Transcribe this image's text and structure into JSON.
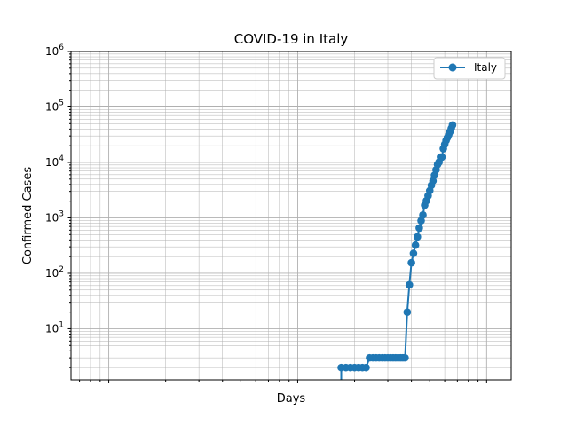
{
  "chart_data": {
    "type": "line",
    "title": "COVID-19 in Italy",
    "xlabel": "Days",
    "ylabel": "Confirmed Cases",
    "yscale": "log",
    "xscale": "log",
    "ylim": [
      1.2,
      1000000
    ],
    "grid": "both (major and minor)",
    "legend_placement": "top-right",
    "series": [
      {
        "name": "Italy",
        "color": "#1f77b4",
        "marker": "circle",
        "points": [
          [
            17,
            1.2
          ],
          [
            17,
            2
          ],
          [
            18,
            2
          ],
          [
            19,
            2
          ],
          [
            20,
            2
          ],
          [
            21,
            2
          ],
          [
            22,
            2
          ],
          [
            23,
            2
          ],
          [
            24,
            3
          ],
          [
            25,
            3
          ],
          [
            26,
            3
          ],
          [
            27,
            3
          ],
          [
            28,
            3
          ],
          [
            29,
            3
          ],
          [
            30,
            3
          ],
          [
            31,
            3
          ],
          [
            32,
            3
          ],
          [
            33,
            3
          ],
          [
            34,
            3
          ],
          [
            35,
            3
          ],
          [
            36,
            3
          ],
          [
            37,
            3
          ],
          [
            38,
            20
          ],
          [
            39,
            62
          ],
          [
            40,
            155
          ],
          [
            41,
            229
          ],
          [
            42,
            322
          ],
          [
            43,
            453
          ],
          [
            44,
            655
          ],
          [
            45,
            888
          ],
          [
            46,
            1128
          ],
          [
            47,
            1694
          ],
          [
            48,
            2036
          ],
          [
            49,
            2502
          ],
          [
            50,
            3089
          ],
          [
            51,
            3858
          ],
          [
            52,
            4636
          ],
          [
            53,
            5883
          ],
          [
            54,
            7375
          ],
          [
            55,
            9172
          ],
          [
            56,
            10149
          ],
          [
            57,
            12462
          ],
          [
            58,
            12462
          ],
          [
            59,
            17660
          ],
          [
            60,
            21157
          ],
          [
            61,
            24747
          ],
          [
            62,
            27980
          ],
          [
            63,
            31506
          ],
          [
            64,
            35713
          ],
          [
            65,
            41035
          ],
          [
            66,
            47021
          ]
        ]
      }
    ]
  },
  "labels": {
    "yticks": [
      {
        "base": "10",
        "exp": "1",
        "value": 10
      },
      {
        "base": "10",
        "exp": "2",
        "value": 100
      },
      {
        "base": "10",
        "exp": "3",
        "value": 1000
      },
      {
        "base": "10",
        "exp": "4",
        "value": 10000
      },
      {
        "base": "10",
        "exp": "5",
        "value": 100000
      },
      {
        "base": "10",
        "exp": "6",
        "value": 1000000
      }
    ]
  }
}
